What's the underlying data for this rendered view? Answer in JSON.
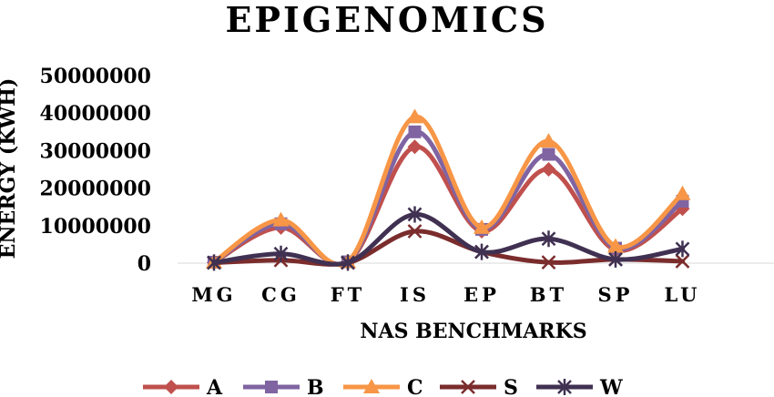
{
  "chart_data": {
    "type": "line",
    "title": "EPIGENOMICS",
    "xlabel": "NAS BENCHMARKS",
    "ylabel": "ENERGY (KWH)",
    "categories": [
      "MG",
      "CG",
      "FT",
      "IS",
      "EP",
      "BT",
      "SP",
      "LU"
    ],
    "ylim": [
      0,
      50000000
    ],
    "yticks": [
      0,
      10000000,
      20000000,
      30000000,
      40000000,
      50000000
    ],
    "ytick_labels": [
      "0",
      "10000000",
      "20000000",
      "30000000",
      "40000000",
      "50000000"
    ],
    "grid": false,
    "legend_position": "bottom",
    "smooth": true,
    "series": [
      {
        "name": "A",
        "color": "#c0504d",
        "marker": "diamond",
        "values": [
          200000,
          9500000,
          300000,
          31000000,
          8500000,
          25000000,
          3500000,
          14500000
        ]
      },
      {
        "name": "B",
        "color": "#8064a2",
        "marker": "square",
        "values": [
          250000,
          10500000,
          350000,
          35000000,
          9000000,
          29000000,
          4000000,
          16500000
        ]
      },
      {
        "name": "C",
        "color": "#f79646",
        "marker": "triangle",
        "values": [
          300000,
          11500000,
          400000,
          39000000,
          9500000,
          32500000,
          4500000,
          18500000
        ]
      },
      {
        "name": "S",
        "color": "#7b2c2c",
        "marker": "x",
        "values": [
          100000,
          800000,
          100000,
          8500000,
          3000000,
          200000,
          1000000,
          500000
        ]
      },
      {
        "name": "W",
        "color": "#403152",
        "marker": "star",
        "values": [
          150000,
          2500000,
          150000,
          13000000,
          3000000,
          6500000,
          1000000,
          3800000
        ]
      }
    ]
  }
}
